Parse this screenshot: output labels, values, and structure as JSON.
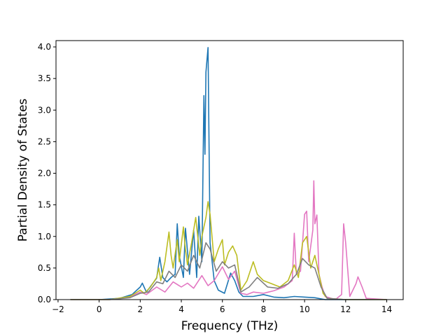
{
  "chart_data": {
    "type": "line",
    "title": "",
    "xlabel": "Frequency (THz)",
    "ylabel": "Partial Density of States",
    "xlim": [
      -2.1,
      14.8
    ],
    "ylim": [
      0.0,
      4.1
    ],
    "xticks": [
      "−2",
      "0",
      "2",
      "4",
      "6",
      "8",
      "10",
      "12",
      "14"
    ],
    "yticks": [
      "0.0",
      "0.5",
      "1.0",
      "1.5",
      "2.0",
      "2.5",
      "3.0",
      "3.5",
      "4.0"
    ],
    "grid": false,
    "legend": "none",
    "series": [
      {
        "color": "#1f77b4",
        "x": [
          -1.4,
          0.0,
          1.0,
          1.6,
          2.0,
          2.1,
          2.3,
          2.6,
          2.8,
          2.95,
          3.1,
          3.3,
          3.5,
          3.7,
          3.8,
          3.9,
          4.1,
          4.2,
          4.4,
          4.6,
          4.75,
          4.85,
          5.0,
          5.1,
          5.15,
          5.2,
          5.3,
          5.4,
          5.6,
          5.8,
          6.1,
          6.4,
          6.6,
          6.8,
          7.0,
          7.5,
          8.0,
          8.5,
          9.0,
          9.5,
          10.0,
          10.5,
          11.0,
          12.0,
          14.0
        ],
        "y": [
          0.0,
          0.0,
          0.02,
          0.08,
          0.2,
          0.26,
          0.12,
          0.25,
          0.34,
          0.67,
          0.35,
          0.28,
          0.35,
          0.4,
          1.2,
          0.7,
          0.35,
          1.13,
          0.4,
          1.1,
          0.35,
          1.32,
          0.6,
          3.23,
          2.3,
          3.6,
          3.99,
          0.9,
          0.3,
          0.15,
          0.1,
          0.42,
          0.3,
          0.12,
          0.05,
          0.05,
          0.08,
          0.04,
          0.03,
          0.05,
          0.04,
          0.03,
          0.0,
          0.0,
          0.0
        ]
      },
      {
        "color": "#e377c2",
        "x": [
          -1.4,
          0.5,
          1.5,
          2.0,
          2.3,
          2.8,
          3.2,
          3.6,
          4.0,
          4.3,
          4.6,
          5.0,
          5.3,
          5.6,
          6.0,
          6.3,
          6.6,
          6.9,
          7.2,
          7.5,
          8.0,
          8.5,
          9.0,
          9.4,
          9.5,
          9.6,
          9.8,
          10.0,
          10.1,
          10.2,
          10.4,
          10.45,
          10.5,
          10.6,
          10.7,
          10.85,
          11.0,
          11.5,
          11.8,
          11.9,
          12.0,
          12.2,
          12.5,
          12.6,
          12.8,
          13.0,
          14.0
        ],
        "y": [
          0.0,
          0.0,
          0.04,
          0.12,
          0.08,
          0.2,
          0.12,
          0.28,
          0.2,
          0.26,
          0.18,
          0.38,
          0.22,
          0.3,
          0.52,
          0.32,
          0.45,
          0.1,
          0.08,
          0.12,
          0.1,
          0.14,
          0.2,
          0.3,
          1.05,
          0.4,
          0.45,
          1.35,
          1.4,
          0.6,
          1.1,
          1.88,
          1.2,
          1.34,
          0.4,
          0.2,
          0.05,
          0.0,
          0.08,
          1.2,
          0.9,
          0.05,
          0.25,
          0.36,
          0.2,
          0.02,
          0.0
        ]
      },
      {
        "color": "#bcbd22",
        "x": [
          -1.4,
          0.5,
          1.5,
          2.0,
          2.2,
          2.5,
          2.8,
          2.9,
          3.0,
          3.2,
          3.4,
          3.5,
          3.6,
          3.8,
          3.9,
          4.1,
          4.2,
          4.3,
          4.5,
          4.7,
          4.9,
          5.0,
          5.2,
          5.3,
          5.4,
          5.6,
          5.8,
          6.0,
          6.1,
          6.3,
          6.5,
          6.7,
          6.9,
          7.2,
          7.5,
          7.7,
          8.0,
          8.4,
          8.8,
          9.2,
          9.5,
          9.7,
          9.9,
          10.1,
          10.3,
          10.5,
          10.7,
          10.9,
          11.1,
          12.0,
          14.0
        ],
        "y": [
          0.0,
          0.0,
          0.05,
          0.15,
          0.1,
          0.2,
          0.35,
          0.5,
          0.3,
          0.6,
          1.07,
          0.7,
          0.5,
          0.95,
          0.6,
          1.15,
          0.8,
          0.55,
          0.9,
          1.3,
          0.7,
          1.0,
          1.3,
          1.55,
          1.35,
          0.6,
          0.8,
          0.95,
          0.55,
          0.75,
          0.85,
          0.7,
          0.15,
          0.3,
          0.6,
          0.4,
          0.3,
          0.25,
          0.2,
          0.3,
          0.55,
          0.35,
          0.9,
          1.0,
          0.5,
          0.7,
          0.4,
          0.1,
          0.02,
          0.0,
          0.0
        ]
      },
      {
        "color": "#7f7f7f",
        "x": [
          -1.4,
          0.5,
          1.5,
          2.0,
          2.4,
          2.8,
          3.1,
          3.4,
          3.7,
          4.0,
          4.3,
          4.6,
          4.9,
          5.2,
          5.4,
          5.7,
          6.0,
          6.3,
          6.6,
          6.9,
          7.3,
          7.7,
          8.2,
          8.7,
          9.2,
          9.6,
          9.9,
          10.2,
          10.5,
          10.8,
          11.1,
          12.0,
          14.0
        ],
        "y": [
          0.0,
          0.0,
          0.03,
          0.1,
          0.12,
          0.28,
          0.25,
          0.45,
          0.35,
          0.55,
          0.45,
          0.7,
          0.5,
          0.9,
          0.8,
          0.45,
          0.6,
          0.5,
          0.55,
          0.12,
          0.2,
          0.35,
          0.2,
          0.18,
          0.25,
          0.4,
          0.65,
          0.55,
          0.5,
          0.2,
          0.02,
          0.0,
          0.0
        ]
      }
    ]
  }
}
